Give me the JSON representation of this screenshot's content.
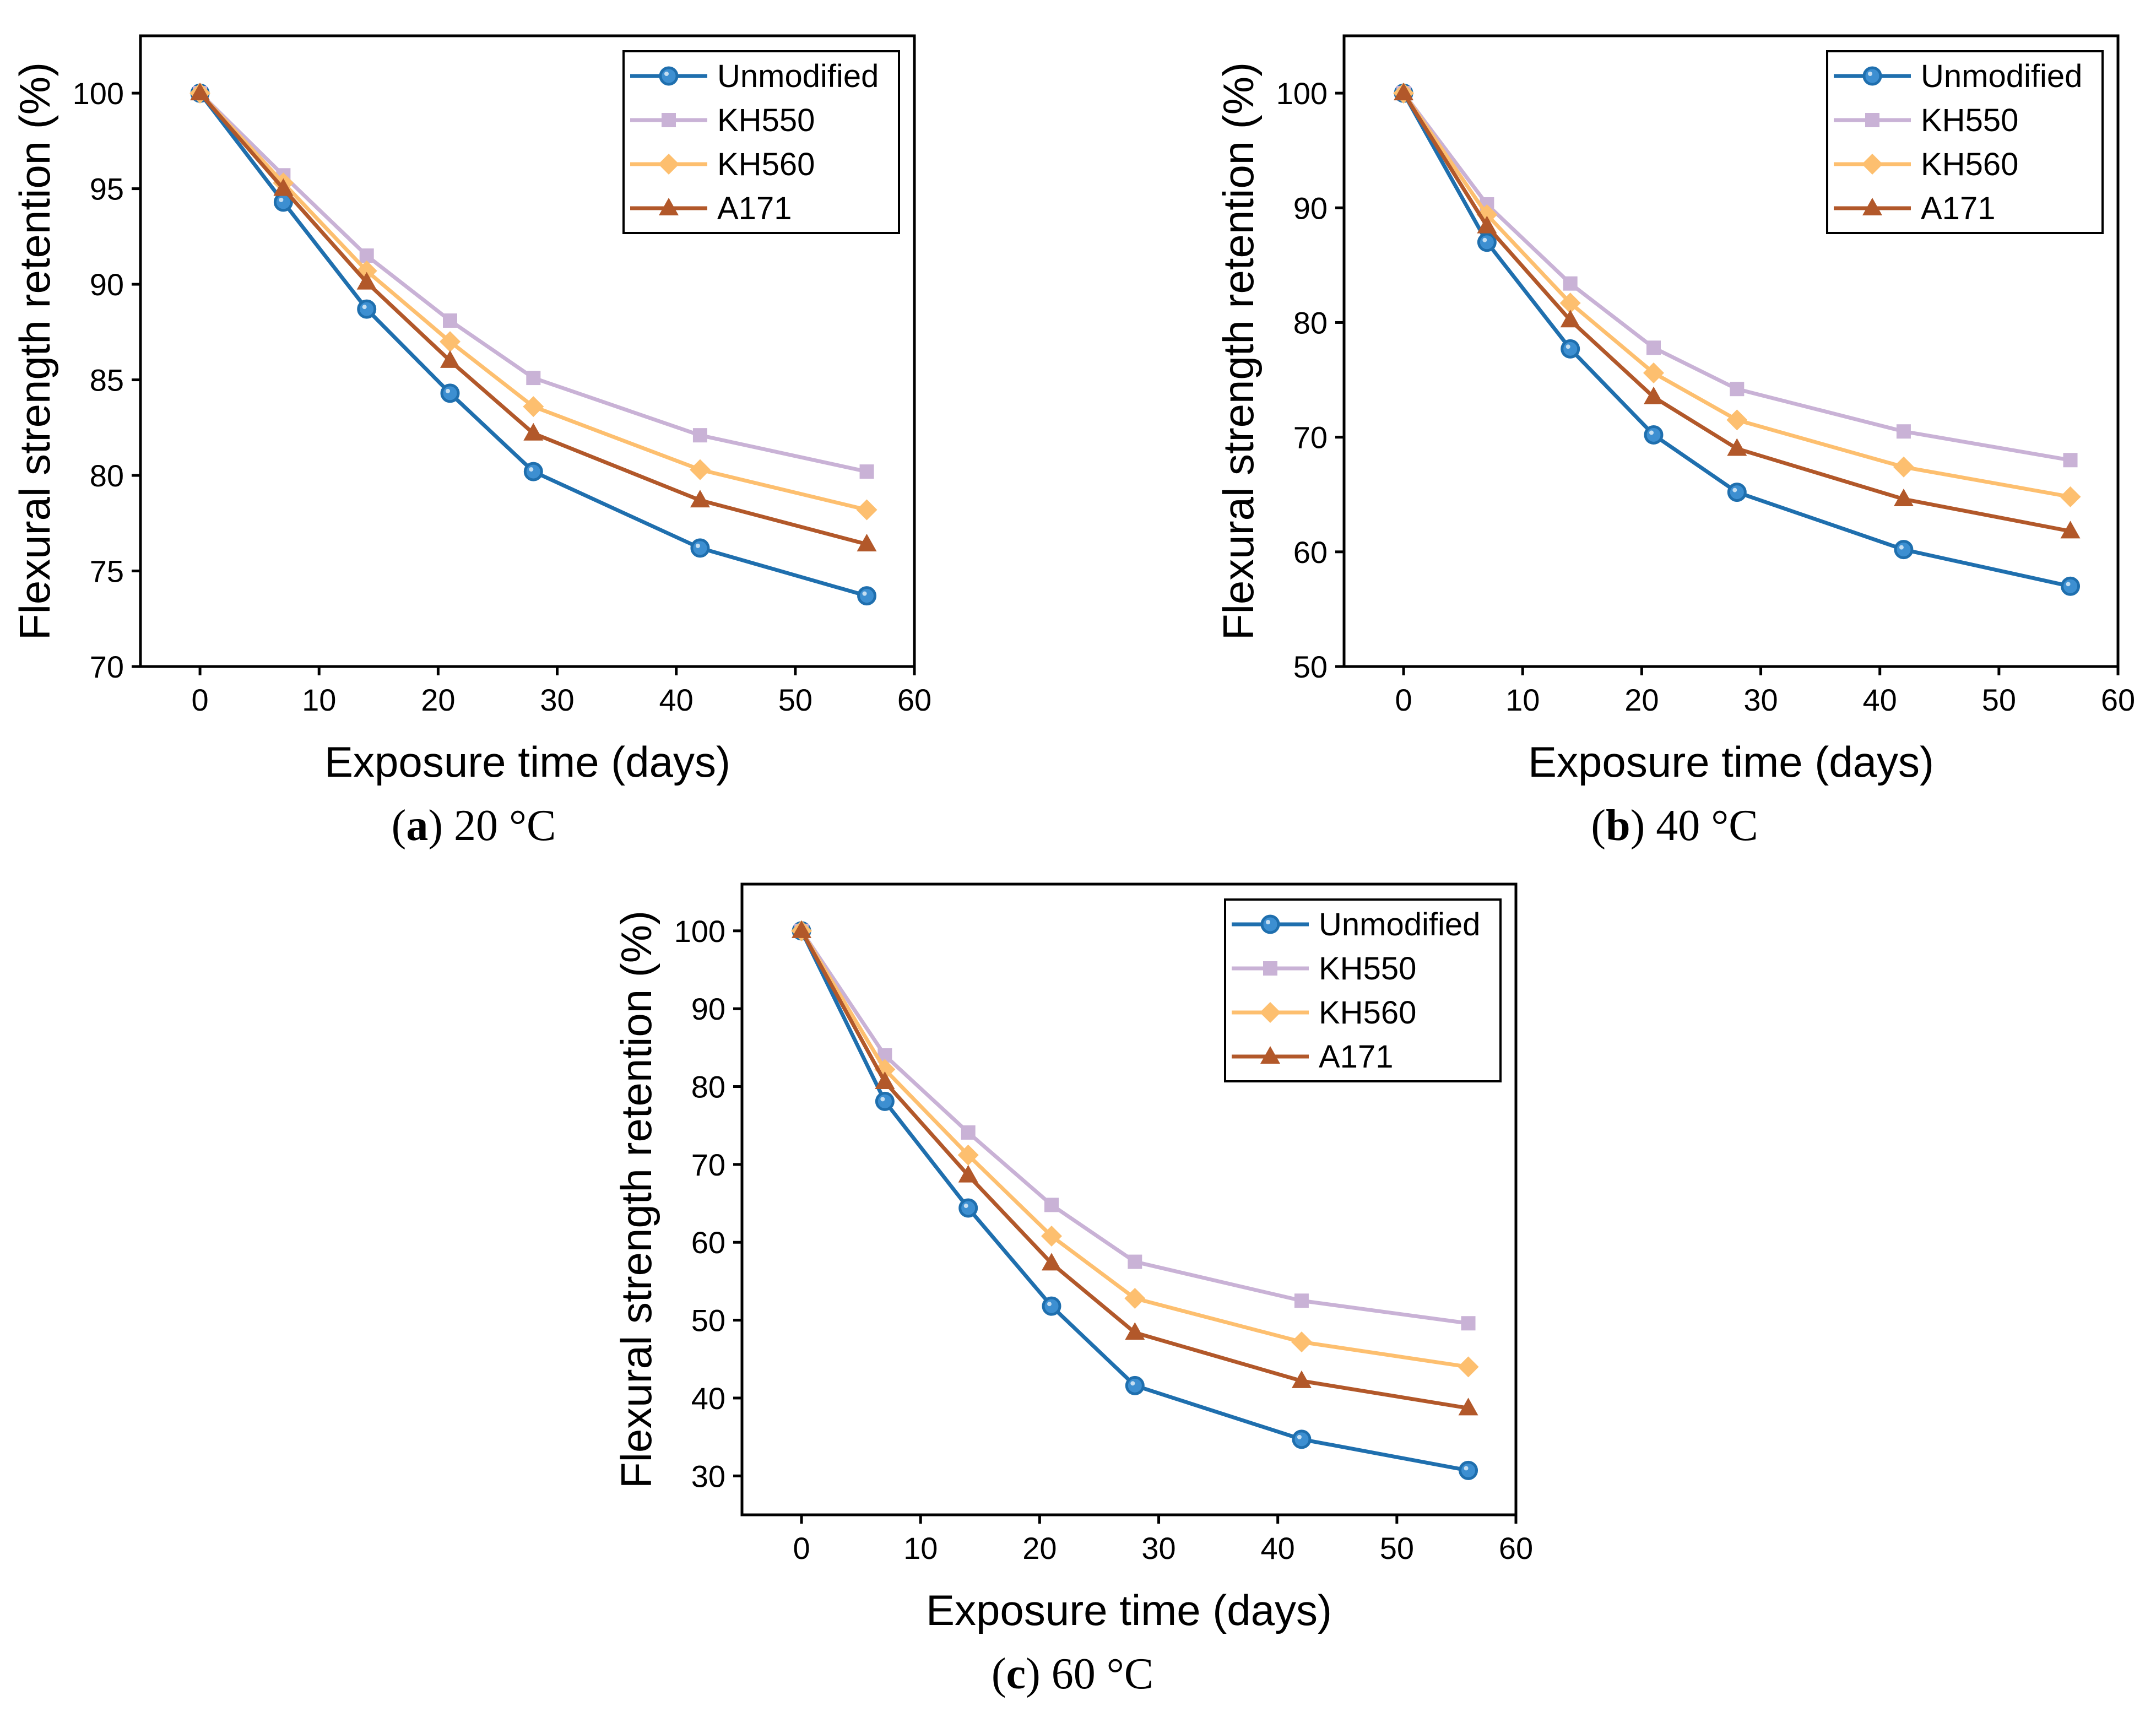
{
  "colors": {
    "Unmodified": "#1f6fae",
    "KH550": "#c9b2d6",
    "KH560": "#fdbf6f",
    "A171": "#b2582a",
    "Unmodified_marker_fill": "#3d8fd1"
  },
  "chart_data": [
    {
      "type": "line",
      "caption": {
        "letter": "a",
        "text": "20 °C"
      },
      "xlabel": "Exposure time (days)",
      "ylabel": "Flexural strength retention (%)",
      "xlim": [
        -5,
        60
      ],
      "ylim": [
        70,
        103
      ],
      "xticks": [
        0,
        10,
        20,
        30,
        40,
        50,
        60
      ],
      "yticks": [
        70,
        75,
        80,
        85,
        90,
        95,
        100
      ],
      "legend_position": "top-right",
      "x": [
        0,
        7,
        14,
        21,
        28,
        42,
        56
      ],
      "series": [
        {
          "name": "Unmodified",
          "marker": "circle",
          "values": [
            100,
            94.3,
            88.7,
            84.3,
            80.2,
            76.2,
            73.7
          ]
        },
        {
          "name": "KH550",
          "marker": "square",
          "values": [
            100,
            95.7,
            91.5,
            88.1,
            85.1,
            82.1,
            80.2
          ]
        },
        {
          "name": "KH560",
          "marker": "diamond",
          "values": [
            100,
            95.3,
            90.7,
            87.0,
            83.6,
            80.3,
            78.2
          ]
        },
        {
          "name": "A171",
          "marker": "triangle",
          "values": [
            100,
            95.0,
            90.1,
            86.0,
            82.2,
            78.7,
            76.4
          ]
        }
      ]
    },
    {
      "type": "line",
      "caption": {
        "letter": "b",
        "text": "40 °C"
      },
      "xlabel": "Exposure time (days)",
      "ylabel": "Flexural strength retention (%)",
      "xlim": [
        -5,
        60
      ],
      "ylim": [
        50,
        105
      ],
      "xticks": [
        0,
        10,
        20,
        30,
        40,
        50,
        60
      ],
      "yticks": [
        50,
        60,
        70,
        80,
        90,
        100
      ],
      "legend_position": "top-right",
      "x": [
        0,
        7,
        14,
        21,
        28,
        42,
        56
      ],
      "series": [
        {
          "name": "Unmodified",
          "marker": "circle",
          "values": [
            100,
            87.0,
            77.7,
            70.2,
            65.2,
            60.2,
            57.0
          ]
        },
        {
          "name": "KH550",
          "marker": "square",
          "values": [
            100,
            90.3,
            83.4,
            77.8,
            74.2,
            70.5,
            68.0
          ]
        },
        {
          "name": "KH560",
          "marker": "diamond",
          "values": [
            100,
            89.4,
            81.7,
            75.6,
            71.5,
            67.4,
            64.8
          ]
        },
        {
          "name": "A171",
          "marker": "triangle",
          "values": [
            100,
            88.4,
            80.2,
            73.5,
            69.0,
            64.6,
            61.8
          ]
        }
      ]
    },
    {
      "type": "line",
      "caption": {
        "letter": "c",
        "text": "60 °C"
      },
      "xlabel": "Exposure time (days)",
      "ylabel": "Flexural strength retention (%)",
      "xlim": [
        -5,
        60
      ],
      "ylim": [
        25,
        106
      ],
      "xticks": [
        0,
        10,
        20,
        30,
        40,
        50,
        60
      ],
      "yticks": [
        30,
        40,
        50,
        60,
        70,
        80,
        90,
        100
      ],
      "legend_position": "top-right",
      "x": [
        0,
        7,
        14,
        21,
        28,
        42,
        56
      ],
      "series": [
        {
          "name": "Unmodified",
          "marker": "circle",
          "values": [
            100,
            78.1,
            64.4,
            51.8,
            41.6,
            34.7,
            30.7
          ]
        },
        {
          "name": "KH550",
          "marker": "square",
          "values": [
            100,
            84.0,
            74.1,
            64.8,
            57.5,
            52.5,
            49.6
          ]
        },
        {
          "name": "KH560",
          "marker": "diamond",
          "values": [
            100,
            82.2,
            71.2,
            60.8,
            52.8,
            47.2,
            44.0
          ]
        },
        {
          "name": "A171",
          "marker": "triangle",
          "values": [
            100,
            80.6,
            68.6,
            57.3,
            48.4,
            42.2,
            38.7
          ]
        }
      ]
    }
  ]
}
